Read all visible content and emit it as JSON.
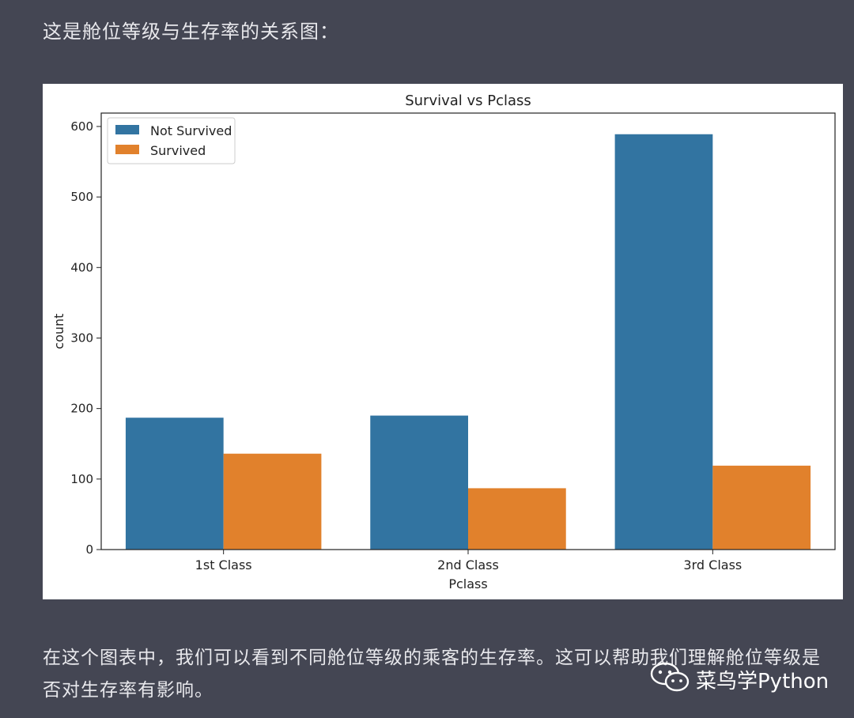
{
  "intro_text": "这是舱位等级与生存率的关系图：",
  "outro_text": "在这个图表中，我们可以看到不同舱位等级的乘客的生存率。这可以帮助我们理解舱位等级是否对生存率有影响。",
  "watermark": {
    "text": "菜鸟学Python",
    "icon": "wechat-icon"
  },
  "colors": {
    "not_survived": "#3274a1",
    "survived": "#e1812c"
  },
  "chart_data": {
    "type": "bar",
    "title": "Survival vs Pclass",
    "xlabel": "Pclass",
    "ylabel": "count",
    "categories": [
      "1st Class",
      "2nd Class",
      "3rd Class"
    ],
    "series": [
      {
        "name": "Not Survived",
        "values": [
          187,
          190,
          589
        ]
      },
      {
        "name": "Survived",
        "values": [
          136,
          87,
          119
        ]
      }
    ],
    "yticks": [
      0,
      100,
      200,
      300,
      400,
      500,
      600
    ],
    "ylim": [
      0,
      619
    ],
    "legend": "top-left",
    "grid": false
  }
}
